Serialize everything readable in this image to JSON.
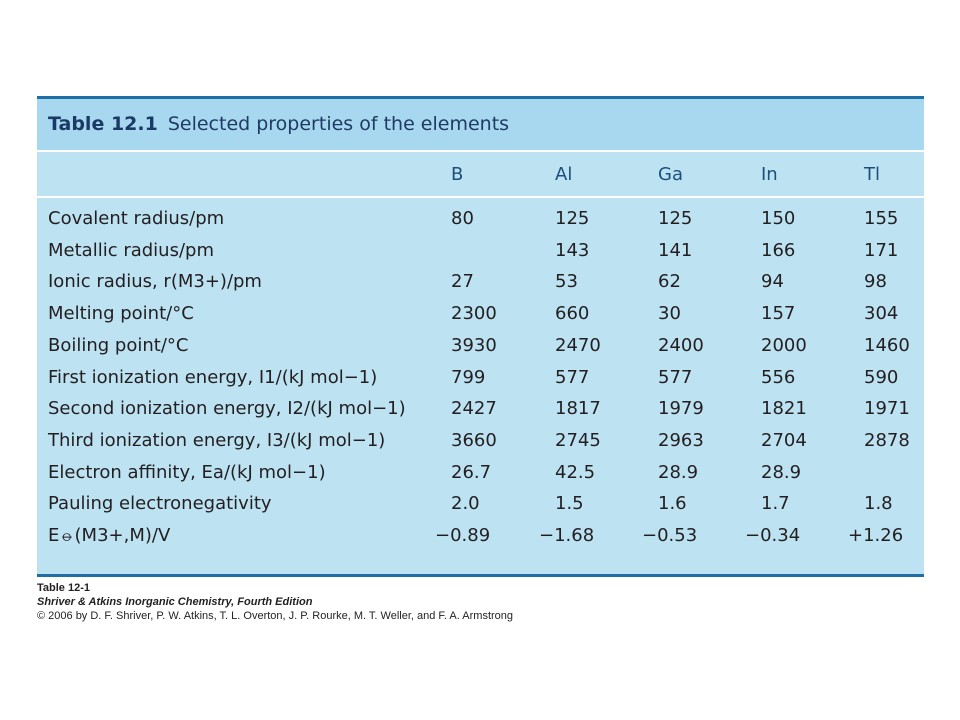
{
  "table": {
    "number": "Table 12.1",
    "title": "Selected properties of the elements",
    "columns": [
      "B",
      "Al",
      "Ga",
      "In",
      "Tl"
    ],
    "rows": [
      {
        "label": "Covalent radius/pm",
        "values": [
          "80",
          "125",
          "125",
          "150",
          "155"
        ]
      },
      {
        "label": "Metallic radius/pm",
        "values": [
          "",
          "143",
          "141",
          "166",
          "171"
        ]
      },
      {
        "label": "Ionic radius, r(M3+)/pm",
        "values": [
          "27",
          "53",
          "62",
          "94",
          "98"
        ]
      },
      {
        "label": "Melting point/°C",
        "values": [
          "2300",
          "660",
          "30",
          "157",
          "304"
        ]
      },
      {
        "label": "Boiling point/°C",
        "values": [
          "3930",
          "2470",
          "2400",
          "2000",
          "1460"
        ]
      },
      {
        "label": "First ionization energy, I1/(kJ mol−1)",
        "values": [
          "799",
          "577",
          "577",
          "556",
          "590"
        ]
      },
      {
        "label": "Second ionization energy, I2/(kJ mol−1)",
        "values": [
          "2427",
          "1817",
          "1979",
          "1821",
          "1971"
        ]
      },
      {
        "label": "Third ionization energy, I3/(kJ mol−1)",
        "values": [
          "3660",
          "2745",
          "2963",
          "2704",
          "2878"
        ]
      },
      {
        "label": "Electron affinity, Ea/(kJ mol−1)",
        "values": [
          "26.7",
          "42.5",
          "28.9",
          "28.9",
          ""
        ]
      },
      {
        "label": "Pauling electronegativity",
        "values": [
          "2.0",
          "1.5",
          "1.6",
          "1.7",
          "1.8"
        ]
      },
      {
        "label": "E⦵(M3+,M)/V",
        "values": [
          "−0.89",
          "−1.68",
          "−0.53",
          "−0.34",
          "+1.26"
        ]
      }
    ]
  },
  "caption": {
    "line1": "Table 12-1",
    "line2": "Shriver & Atkins Inorganic Chemistry, Fourth Edition",
    "line3": "© 2006 by D. F. Shriver, P. W. Atkins, T. L. Overton, J. P. Rourke, M. T. Weller, and F. A. Armstrong"
  }
}
